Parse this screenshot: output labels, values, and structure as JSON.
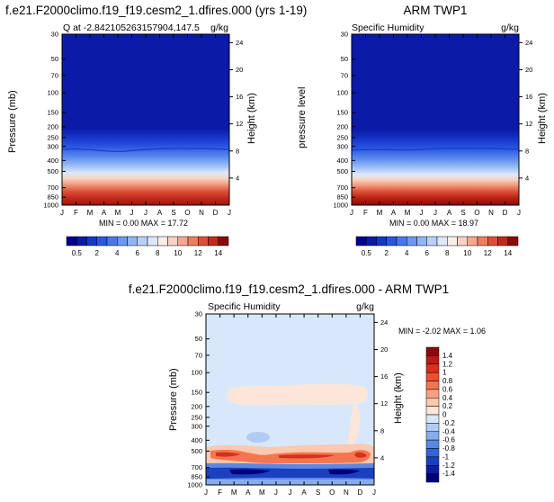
{
  "chart_data": [
    {
      "type": "heatmap",
      "title": "f.e21.F2000climo.f19_f19.cesm2_1.dfires.000 (yrs 1-19)",
      "subtitle_left": "Q at -2.842105263157904,147.5",
      "subtitle_right": "g/kg",
      "ylabel": "Pressure (mb)",
      "y2label": "Height (km)",
      "x_ticks": [
        "J",
        "F",
        "M",
        "A",
        "M",
        "J",
        "J",
        "A",
        "S",
        "O",
        "N",
        "D",
        "J"
      ],
      "y_ticks": [
        "30",
        "50",
        "70",
        "100",
        "150",
        "200",
        "250",
        "300",
        "400",
        "500",
        "700",
        "850",
        "1000"
      ],
      "y2_ticks": [
        "24",
        "20",
        "16",
        "12",
        "8",
        "4"
      ],
      "stats": "MIN = 0.00 MAX = 17.72",
      "colorbar": {
        "orientation": "horizontal",
        "tick_labels": [
          "0.5",
          "2",
          "4",
          "6",
          "8",
          "10",
          "12",
          "14"
        ]
      }
    },
    {
      "type": "heatmap",
      "title": "ARM TWP1",
      "subtitle_left": "Specific Humidity",
      "subtitle_right": "g/kg",
      "ylabel": "pressure level",
      "y2label": "Height (km)",
      "x_ticks": [
        "J",
        "F",
        "M",
        "A",
        "M",
        "J",
        "J",
        "A",
        "S",
        "O",
        "N",
        "D",
        "J"
      ],
      "y_ticks": [
        "30",
        "50",
        "70",
        "100",
        "150",
        "200",
        "250",
        "300",
        "400",
        "500",
        "700",
        "850",
        "1000"
      ],
      "y2_ticks": [
        "24",
        "20",
        "16",
        "12",
        "8",
        "4"
      ],
      "stats": "MIN = 0.00 MAX = 18.97",
      "colorbar": {
        "orientation": "horizontal",
        "tick_labels": [
          "0.5",
          "2",
          "4",
          "6",
          "8",
          "10",
          "12",
          "14"
        ]
      }
    },
    {
      "type": "heatmap",
      "title": "f.e21.F2000climo.f19_f19.cesm2_1.dfires.000 - ARM TWP1",
      "subtitle_left": "Specific Humidity",
      "subtitle_right": "g/kg",
      "ylabel": "Pressure (mb)",
      "y2label": "Height (km)",
      "x_ticks": [
        "J",
        "F",
        "M",
        "A",
        "M",
        "J",
        "J",
        "A",
        "S",
        "O",
        "N",
        "D",
        "J"
      ],
      "y_ticks": [
        "30",
        "50",
        "70",
        "100",
        "150",
        "200",
        "250",
        "300",
        "400",
        "500",
        "700",
        "850",
        "1000"
      ],
      "y2_ticks": [
        "24",
        "20",
        "16",
        "12",
        "8",
        "4"
      ],
      "stats": "MIN = -2.02 MAX =  1.06",
      "colorbar": {
        "orientation": "vertical",
        "tick_labels": [
          "1.4",
          "1.2",
          "1",
          "0.8",
          "0.6",
          "0.4",
          "0.2",
          "0",
          "-0.2",
          "-0.4",
          "-0.6",
          "-0.8",
          "-1",
          "-1.2",
          "-1.4"
        ]
      }
    }
  ],
  "colors": {
    "abs_scale": [
      "#00008c",
      "#0a1aa8",
      "#1438c8",
      "#2a56e0",
      "#4878ec",
      "#6a98f2",
      "#90b6f6",
      "#b8d0f8",
      "#dce8fa",
      "#fbeee6",
      "#f8d2c2",
      "#f4a88c",
      "#ec7e60",
      "#dc5038",
      "#c02a1c",
      "#8c0a0a"
    ],
    "diff_scale": [
      "#8c0a0a",
      "#b81c14",
      "#d8301c",
      "#ec5030",
      "#f47650",
      "#f8a080",
      "#fbc8b0",
      "#fce6da",
      "#d8e8fa",
      "#b0ccf4",
      "#86acee",
      "#5c88e4",
      "#3464d6",
      "#1a40c0",
      "#0c1ea0",
      "#00007a"
    ]
  }
}
